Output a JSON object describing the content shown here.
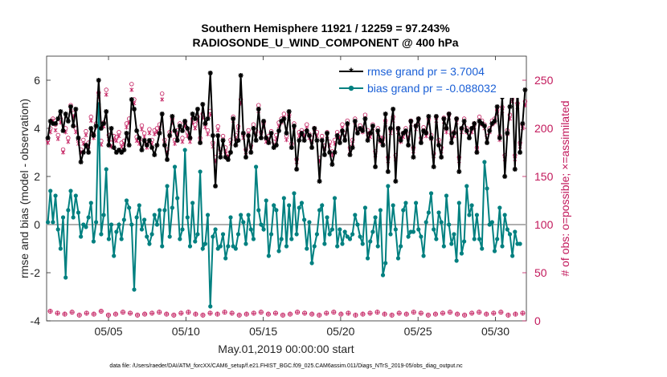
{
  "chart_data": {
    "type": "line",
    "title": "Southern Hemisphere 11921 / 12259 = 97.243%",
    "subtitle": "RADIOSONDE_U_WIND_COMPONENT @ 400 hPa",
    "xlabel": "May.01,2019 00:00:00 start",
    "ylabel": "rmse and bias (model - observation)",
    "ylabel_right": "# of obs: o=possible; ×=assimilated",
    "xlim": [
      1,
      32
    ],
    "ylim": [
      -4,
      7
    ],
    "ylim_right": [
      0,
      275
    ],
    "x_ticks": [
      5,
      10,
      15,
      20,
      25,
      30
    ],
    "x_tick_labels": [
      "05/05",
      "05/10",
      "05/15",
      "05/20",
      "05/25",
      "05/30"
    ],
    "y_ticks": [
      -4,
      -2,
      0,
      2,
      4,
      6
    ],
    "y_tick_labels": [
      "-4",
      "-2",
      "0",
      "2",
      "4",
      "6"
    ],
    "y_ticks_right": [
      0,
      50,
      100,
      150,
      200,
      250
    ],
    "y_tick_labels_right": [
      "0",
      "50",
      "100",
      "150",
      "200",
      "250"
    ],
    "zero_line": 0,
    "legend_position": "top-right",
    "footer": "data file: /Users/raeder/DAI/ATM_forcXX/CAM6_setup/f.e21.FHIST_BGC.f09_025.CAM6assim.011/Diags_NTrS_2019-05/obs_diag_output.nc",
    "series": [
      {
        "name": "rmse grand pr = 3.7004",
        "color": "#000000",
        "values": [
          3.6,
          4.3,
          4.2,
          4.2,
          4.4,
          4.7,
          3.9,
          4.6,
          4.3,
          4.9,
          4.1,
          4.8,
          3.6,
          2.6,
          3.0,
          3.3,
          3.0,
          4.0,
          3.7,
          4.1,
          6.0,
          4.0,
          4.2,
          4.7,
          3.3,
          4.0,
          3.2,
          3.0,
          3.1,
          3.0,
          3.1,
          3.8,
          3.3,
          5.2,
          4.8,
          3.9,
          3.6,
          3.1,
          3.5,
          3.3,
          3.5,
          3.2,
          2.9,
          3.3,
          3.8,
          4.6,
          3.3,
          2.7,
          3.7,
          4.5,
          3.9,
          3.5,
          4.1,
          3.9,
          4.3,
          4.0,
          3.6,
          4.6,
          4.4,
          4.8,
          3.4,
          5.0,
          4.2,
          4.4,
          6.3,
          3.7,
          1.6,
          3.7,
          2.8,
          3.5,
          2.8,
          2.7,
          3.0,
          4.4,
          3.3,
          3.5,
          6.2,
          3.8,
          2.8,
          3.7,
          3.0,
          4.0,
          3.5,
          4.8,
          3.6,
          4.3,
          3.6,
          3.4,
          3.8,
          3.2,
          3.3,
          3.9,
          4.3,
          4.4,
          3.8,
          4.7,
          3.2,
          4.1,
          2.3,
          3.5,
          3.8,
          3.5,
          3.9,
          3.7,
          3.2,
          4.0,
          3.5,
          1.8,
          3.5,
          2.9,
          3.8,
          3.0,
          2.5,
          3.0,
          3.7,
          3.4,
          3.9,
          3.5,
          4.2,
          2.9,
          3.2,
          4.3,
          3.8,
          4.0,
          3.9,
          4.4,
          3.5,
          3.8,
          4.1,
          2.4,
          3.9,
          3.5,
          3.3,
          4.6,
          2.2,
          4.0,
          4.8,
          1.8,
          4.0,
          3.5,
          3.8,
          3.9,
          3.3,
          4.3,
          2.8,
          4.1,
          4.4,
          3.4,
          3.9,
          3.8,
          4.5,
          3.6,
          2.4,
          4.5,
          3.3,
          2.8,
          4.4,
          4.0,
          4.6,
          3.4,
          3.8,
          4.4,
          2.2,
          4.0,
          4.3,
          3.9,
          3.6,
          4.0,
          4.2,
          3.0,
          4.3,
          4.2,
          4.1,
          3.4,
          3.9,
          4.2,
          4.3,
          4.9,
          3.6,
          5.3,
          2.0,
          3.8,
          4.9,
          5.8,
          2.3,
          5.8,
          3.0,
          4.2,
          5.6
        ],
        "marker": "*"
      },
      {
        "name": "bias grand pr = -0.088032",
        "color": "#008080",
        "values": [
          0.1,
          1.4,
          0.1,
          1.2,
          -0.2,
          -1.0,
          0.3,
          -2.2,
          0.6,
          1.4,
          0.3,
          1.2,
          0.5,
          -0.5,
          0.0,
          -0.1,
          0.3,
          0.9,
          -0.7,
          0.1,
          5.0,
          -0.4,
          0.4,
          2.3,
          -0.6,
          0.0,
          -1.3,
          -0.3,
          0.0,
          -0.6,
          0.2,
          1.0,
          0.7,
          0.0,
          -2.7,
          0.3,
          0.8,
          -0.2,
          0.2,
          -0.5,
          -0.8,
          -0.4,
          0.4,
          0.0,
          0.6,
          -0.9,
          0.6,
          1.6,
          -0.5,
          0.7,
          2.4,
          1.1,
          -0.6,
          -0.2,
          3.1,
          0.3,
          -0.9,
          0.9,
          -0.7,
          -0.4,
          2.2,
          -1.0,
          -0.8,
          0.4,
          -3.4,
          -0.5,
          -0.2,
          -1.0,
          -0.9,
          -0.4,
          -1.4,
          -0.9,
          0.3,
          -0.9,
          -1.0,
          -0.4,
          0.4,
          0.1,
          -0.8,
          0.4,
          -0.2,
          -0.6,
          2.4,
          0.6,
          0.0,
          -0.2,
          1.0,
          -1.3,
          -0.4,
          0.8,
          0.6,
          -1.1,
          -0.6,
          1.1,
          -0.9,
          0.8,
          -0.6,
          1.3,
          -0.4,
          0.7,
          0.9,
          0.2,
          -1.0,
          0.1,
          -1.6,
          -0.9,
          -0.4,
          0.6,
          0.8,
          -0.8,
          0.3,
          -0.4,
          -0.2,
          1.1,
          -0.9,
          -0.2,
          -0.8,
          -0.3,
          -0.5,
          -0.6,
          -0.4,
          0.4,
          0.0,
          -0.5,
          -0.8,
          0.7,
          -1.4,
          -0.7,
          -0.3,
          0.3,
          -0.9,
          0.6,
          -2.1,
          -1.6,
          1.6,
          -0.4,
          0.8,
          -0.2,
          -1.4,
          -0.9,
          0.6,
          0.9,
          -0.5,
          -0.3,
          -0.3,
          0.9,
          -0.2,
          -0.5,
          -1.3,
          0.1,
          0.5,
          1.3,
          -0.2,
          -0.6,
          0.5,
          0.1,
          -0.9,
          1.2,
          0.0,
          -0.8,
          -0.4,
          -1.5,
          0.9,
          -1.2,
          -0.7,
          1.6,
          0.4,
          0.8,
          -0.6,
          0.4,
          -0.6,
          -1.0,
          2.6,
          1.5,
          0.0,
          0.1,
          -1.1,
          -0.6,
          0.7,
          -0.9,
          0.4,
          -0.2,
          -0.4,
          -1.3,
          -0.3,
          -0.8,
          -0.8
        ],
        "marker": "o"
      }
    ],
    "obs_possible": {
      "name": "possible",
      "color": "#c2185b",
      "marker": "o",
      "values": [
        188,
        200,
        210,
        204,
        193,
        210,
        178,
        200,
        190,
        224,
        216,
        200,
        188,
        178,
        188,
        197,
        185,
        212,
        194,
        205,
        237,
        187,
        206,
        240,
        193,
        185,
        192,
        191,
        196,
        185,
        187,
        205,
        210,
        246,
        230,
        191,
        188,
        203,
        195,
        184,
        199,
        188,
        198,
        200,
        204,
        236,
        188,
        178,
        196,
        210,
        188,
        198,
        205,
        190,
        206,
        196,
        190,
        210,
        204,
        212,
        190,
        215,
        205,
        198,
        218,
        185,
        170,
        202,
        178,
        192,
        180,
        174,
        188,
        212,
        193,
        202,
        230,
        194,
        178,
        198,
        182,
        204,
        198,
        224,
        196,
        206,
        190,
        192,
        197,
        186,
        193,
        206,
        210,
        215,
        192,
        214,
        184,
        205,
        168,
        196,
        198,
        196,
        204,
        194,
        190,
        200,
        196,
        169,
        192,
        182,
        196,
        186,
        176,
        188,
        196,
        194,
        204,
        195,
        208,
        180,
        188,
        210,
        199,
        203,
        200,
        214,
        198,
        195,
        204,
        176,
        200,
        190,
        190,
        208,
        170,
        199,
        212,
        172,
        200,
        190,
        195,
        200,
        194,
        208,
        180,
        203,
        210,
        190,
        201,
        196,
        210,
        193,
        174,
        212,
        188,
        180,
        211,
        200,
        215,
        194,
        196,
        210,
        170,
        200,
        210,
        200,
        195,
        200,
        205,
        180,
        212,
        208,
        204,
        192,
        200,
        208,
        210,
        219,
        192,
        222,
        172,
        198,
        214,
        232,
        172,
        226,
        185,
        204,
        228
      ]
    },
    "obs_assimilated": {
      "name": "assimilated",
      "color": "#c2185b",
      "marker": "x",
      "values": [
        185,
        196,
        208,
        198,
        189,
        206,
        175,
        196,
        186,
        218,
        212,
        196,
        184,
        175,
        184,
        193,
        181,
        208,
        190,
        201,
        233,
        183,
        202,
        235,
        189,
        181,
        188,
        187,
        192,
        181,
        183,
        201,
        206,
        240,
        226,
        187,
        184,
        199,
        191,
        180,
        195,
        184,
        194,
        196,
        200,
        230,
        184,
        175,
        192,
        206,
        184,
        194,
        201,
        186,
        202,
        192,
        186,
        206,
        200,
        208,
        186,
        211,
        201,
        194,
        214,
        181,
        166,
        198,
        175,
        188,
        176,
        171,
        184,
        208,
        189,
        198,
        226,
        190,
        175,
        194,
        178,
        200,
        194,
        218,
        192,
        202,
        186,
        188,
        193,
        182,
        189,
        202,
        206,
        211,
        188,
        210,
        180,
        201,
        165,
        192,
        194,
        192,
        200,
        190,
        186,
        196,
        192,
        166,
        188,
        179,
        192,
        182,
        172,
        184,
        192,
        190,
        200,
        191,
        204,
        176,
        184,
        206,
        195,
        199,
        196,
        210,
        194,
        191,
        200,
        172,
        196,
        186,
        186,
        204,
        166,
        195,
        208,
        168,
        196,
        186,
        191,
        196,
        190,
        204,
        176,
        199,
        206,
        186,
        197,
        192,
        206,
        189,
        171,
        208,
        184,
        176,
        207,
        196,
        211,
        190,
        192,
        206,
        166,
        196,
        206,
        196,
        191,
        196,
        201,
        176,
        208,
        204,
        200,
        188,
        196,
        204,
        206,
        215,
        188,
        218,
        168,
        194,
        210,
        228,
        168,
        222,
        181,
        200,
        224
      ]
    },
    "obs_count_bottom": {
      "note": "per-period obs counts near 0 on right axis",
      "values": [
        10,
        8,
        7,
        9,
        6,
        8,
        7,
        10,
        6,
        7,
        9,
        8,
        6,
        7,
        8,
        9,
        7,
        6,
        8,
        9,
        7,
        6,
        8,
        7,
        9,
        8,
        6,
        7,
        8,
        9,
        7,
        8,
        6,
        7,
        9,
        8,
        7,
        6,
        8,
        9,
        7,
        8,
        6,
        7,
        8,
        9,
        7,
        6,
        8,
        7,
        9,
        8,
        6,
        7,
        8,
        9,
        7,
        6,
        8,
        9,
        7,
        8,
        9,
        6,
        7,
        8
      ]
    }
  }
}
